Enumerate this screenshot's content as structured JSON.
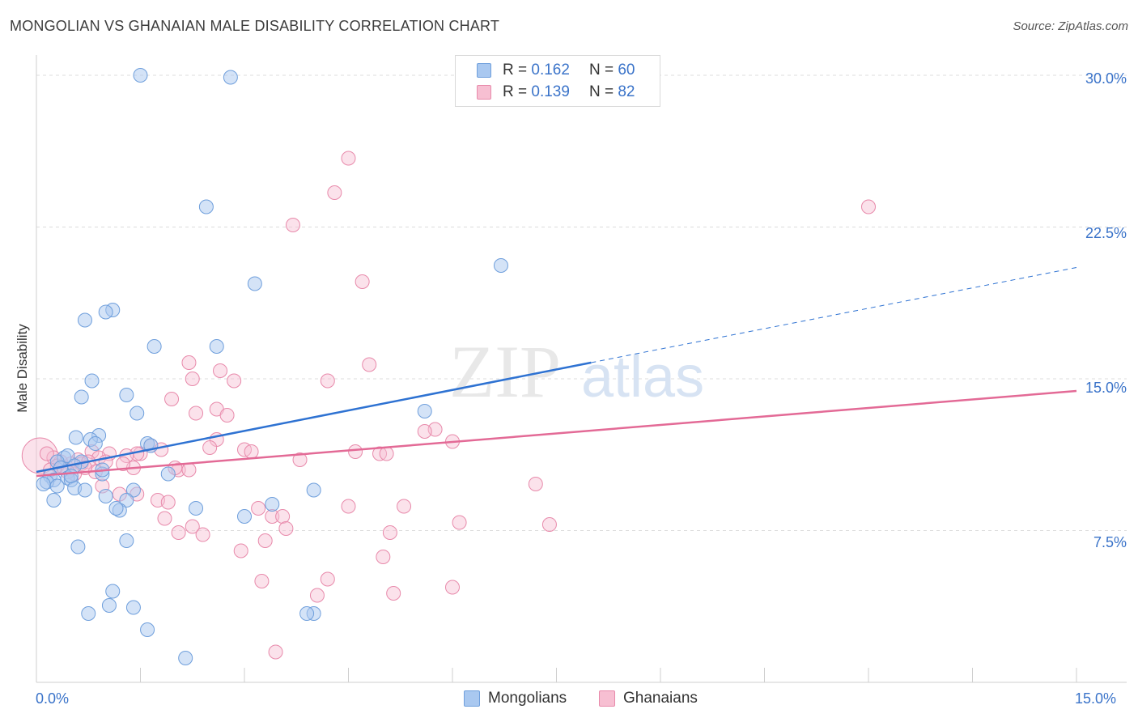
{
  "title": "MONGOLIAN VS GHANAIAN MALE DISABILITY CORRELATION CHART",
  "source": "Source: ZipAtlas.com",
  "watermark": {
    "zip": "ZIP",
    "atlas": "atlas"
  },
  "legend_top": [
    {
      "r_label": "R =",
      "r_value": "0.162",
      "n_label": "N =",
      "n_value": "60"
    },
    {
      "r_label": "R =",
      "r_value": "0.139",
      "n_label": "N =",
      "n_value": "82"
    }
  ],
  "legend_bottom": [
    "Mongolians",
    "Ghanaians"
  ],
  "axis": {
    "x_min_label": "0.0%",
    "x_max_label": "15.0%",
    "y_ticks": [
      "30.0%",
      "22.5%",
      "15.0%",
      "7.5%"
    ]
  },
  "colors": {
    "blue_fill": "#a9c8f0",
    "blue_stroke": "#6f9fdc",
    "blue_line": "#2e72d2",
    "pink_fill": "#f7bfd2",
    "pink_stroke": "#e88aab",
    "pink_line": "#e36a96",
    "grid": "#dcdcdc",
    "tick_label": "#3a73c9"
  },
  "chart_data": {
    "type": "scatter",
    "title": "MONGOLIAN VS GHANAIAN MALE DISABILITY CORRELATION CHART",
    "xlabel": "",
    "ylabel": "Male Disability",
    "xlim": [
      0,
      15
    ],
    "ylim": [
      0,
      30.6
    ],
    "y_ticks": [
      7.5,
      15.0,
      22.5,
      30.0
    ],
    "grid": "horizontal dashed",
    "legend": "top-center",
    "series": [
      {
        "name": "Mongolians",
        "R": 0.162,
        "N": 60,
        "trend": {
          "x0": 0,
          "y0": 10.4,
          "x1": 8.0,
          "y1": 15.8,
          "dashed_to_x": 15.0,
          "dashed_to_y": 20.5
        },
        "points": [
          [
            1.5,
            30.0
          ],
          [
            2.8,
            29.9
          ],
          [
            2.45,
            23.5
          ],
          [
            3.15,
            19.7
          ],
          [
            6.7,
            20.6
          ],
          [
            1.1,
            18.4
          ],
          [
            1.0,
            18.3
          ],
          [
            0.7,
            17.9
          ],
          [
            1.7,
            16.6
          ],
          [
            2.6,
            16.6
          ],
          [
            0.8,
            14.9
          ],
          [
            1.3,
            14.2
          ],
          [
            0.65,
            14.1
          ],
          [
            1.45,
            13.3
          ],
          [
            5.6,
            13.4
          ],
          [
            0.57,
            12.1
          ],
          [
            0.9,
            12.2
          ],
          [
            0.78,
            12.0
          ],
          [
            0.85,
            11.8
          ],
          [
            1.6,
            11.8
          ],
          [
            1.65,
            11.7
          ],
          [
            0.4,
            11.1
          ],
          [
            0.45,
            11.2
          ],
          [
            0.3,
            10.9
          ],
          [
            0.65,
            10.9
          ],
          [
            0.55,
            10.7
          ],
          [
            0.35,
            10.6
          ],
          [
            0.95,
            10.3
          ],
          [
            0.2,
            10.2
          ],
          [
            0.25,
            10.0
          ],
          [
            0.15,
            9.9
          ],
          [
            0.1,
            9.8
          ],
          [
            0.45,
            10.1
          ],
          [
            0.5,
            10.0
          ],
          [
            0.3,
            9.7
          ],
          [
            0.55,
            9.6
          ],
          [
            0.7,
            9.5
          ],
          [
            1.9,
            10.3
          ],
          [
            1.4,
            9.5
          ],
          [
            1.0,
            9.2
          ],
          [
            1.3,
            9.0
          ],
          [
            0.25,
            9.0
          ],
          [
            1.2,
            8.5
          ],
          [
            1.15,
            8.6
          ],
          [
            2.3,
            8.6
          ],
          [
            3.4,
            8.8
          ],
          [
            3.0,
            8.2
          ],
          [
            4.0,
            9.5
          ],
          [
            1.3,
            7.0
          ],
          [
            0.6,
            6.7
          ],
          [
            1.1,
            4.5
          ],
          [
            1.05,
            3.8
          ],
          [
            1.4,
            3.7
          ],
          [
            0.75,
            3.4
          ],
          [
            4.0,
            3.4
          ],
          [
            3.9,
            3.4
          ],
          [
            1.6,
            2.6
          ],
          [
            2.15,
            1.2
          ],
          [
            0.95,
            10.5
          ],
          [
            0.5,
            10.2
          ]
        ]
      },
      {
        "name": "Ghanaians",
        "R": 0.139,
        "N": 82,
        "trend": {
          "x0": 0,
          "y0": 10.2,
          "x1": 15.0,
          "y1": 14.4
        },
        "points": [
          [
            4.5,
            25.9
          ],
          [
            4.3,
            24.2
          ],
          [
            3.7,
            22.6
          ],
          [
            12.0,
            23.5
          ],
          [
            4.7,
            19.8
          ],
          [
            2.2,
            15.8
          ],
          [
            4.8,
            15.7
          ],
          [
            2.65,
            15.4
          ],
          [
            2.25,
            15.0
          ],
          [
            2.85,
            14.9
          ],
          [
            4.2,
            14.9
          ],
          [
            1.95,
            14.0
          ],
          [
            2.6,
            13.5
          ],
          [
            2.3,
            13.3
          ],
          [
            2.75,
            13.2
          ],
          [
            5.75,
            12.5
          ],
          [
            5.6,
            12.4
          ],
          [
            6.0,
            11.9
          ],
          [
            2.6,
            12.0
          ],
          [
            2.5,
            11.6
          ],
          [
            3.0,
            11.5
          ],
          [
            3.1,
            11.4
          ],
          [
            4.6,
            11.4
          ],
          [
            4.95,
            11.3
          ],
          [
            5.05,
            11.3
          ],
          [
            1.65,
            11.7
          ],
          [
            1.8,
            11.5
          ],
          [
            1.5,
            11.3
          ],
          [
            1.45,
            11.3
          ],
          [
            1.05,
            11.3
          ],
          [
            1.3,
            11.2
          ],
          [
            0.8,
            11.4
          ],
          [
            0.9,
            11.1
          ],
          [
            0.6,
            11.0
          ],
          [
            0.65,
            10.8
          ],
          [
            0.75,
            10.9
          ],
          [
            0.5,
            10.8
          ],
          [
            0.35,
            10.9
          ],
          [
            0.25,
            11.1
          ],
          [
            0.15,
            11.3
          ],
          [
            0.4,
            10.6
          ],
          [
            1.4,
            10.6
          ],
          [
            2.05,
            10.5
          ],
          [
            3.8,
            11.0
          ],
          [
            2.2,
            10.5
          ],
          [
            2.0,
            10.6
          ],
          [
            0.95,
            9.7
          ],
          [
            1.2,
            9.3
          ],
          [
            1.45,
            9.3
          ],
          [
            1.75,
            9.0
          ],
          [
            1.9,
            8.9
          ],
          [
            7.2,
            9.8
          ],
          [
            5.3,
            8.7
          ],
          [
            4.5,
            8.7
          ],
          [
            3.2,
            8.6
          ],
          [
            3.4,
            8.2
          ],
          [
            3.55,
            8.2
          ],
          [
            1.85,
            8.1
          ],
          [
            6.1,
            7.9
          ],
          [
            7.4,
            7.8
          ],
          [
            2.25,
            7.7
          ],
          [
            3.6,
            7.6
          ],
          [
            2.05,
            7.4
          ],
          [
            2.4,
            7.3
          ],
          [
            5.1,
            7.4
          ],
          [
            3.3,
            7.0
          ],
          [
            2.95,
            6.5
          ],
          [
            5.0,
            6.2
          ],
          [
            4.2,
            5.1
          ],
          [
            3.25,
            5.0
          ],
          [
            6.0,
            4.7
          ],
          [
            5.15,
            4.4
          ],
          [
            4.05,
            4.3
          ],
          [
            3.45,
            1.5
          ],
          [
            0.55,
            10.3
          ],
          [
            0.3,
            10.7
          ],
          [
            1.0,
            10.9
          ],
          [
            1.25,
            10.8
          ],
          [
            0.85,
            10.4
          ],
          [
            0.7,
            10.6
          ],
          [
            0.45,
            10.4
          ],
          [
            0.2,
            10.5
          ]
        ],
        "large_point": [
          0.05,
          11.2
        ]
      }
    ]
  }
}
